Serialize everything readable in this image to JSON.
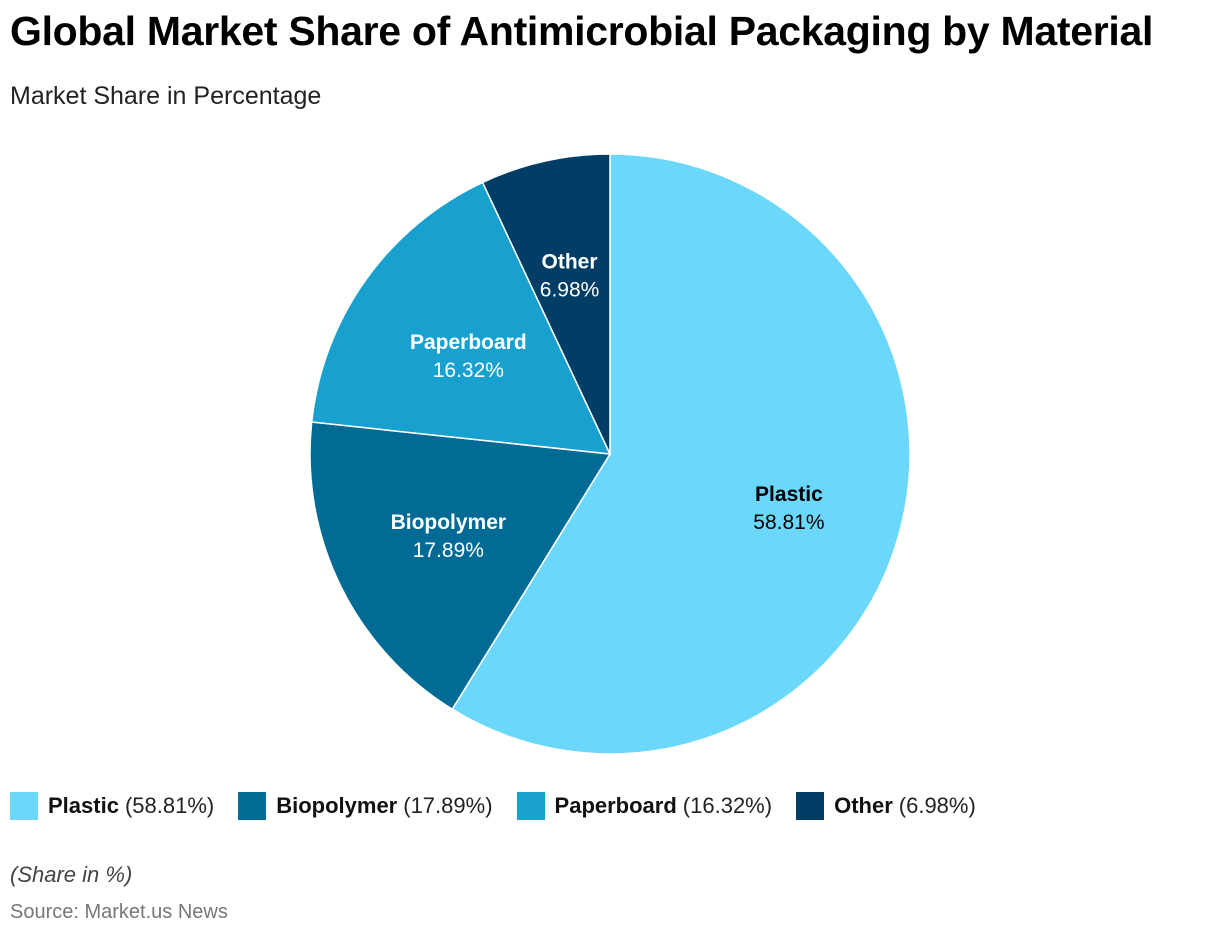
{
  "chart_data": {
    "type": "pie",
    "title": "Global Market Share of Antimicrobial Packaging by Material",
    "subtitle": "Market Share in Percentage",
    "categories": [
      "Plastic",
      "Biopolymer",
      "Paperboard",
      "Other"
    ],
    "values": [
      58.81,
      17.89,
      16.32,
      6.98
    ],
    "value_labels": [
      "58.81%",
      "17.89%",
      "16.32%",
      "6.98%"
    ],
    "colors": [
      "#6ad7fb",
      "#016b96",
      "#18a0cf",
      "#013d64"
    ],
    "label_colors": [
      "#000000",
      "#ffffff",
      "#ffffff",
      "#ffffff"
    ],
    "legend": {
      "position": "bottom-left",
      "items": [
        {
          "name": "Plastic",
          "pct": "(58.81%)",
          "color": "#6ad7fb"
        },
        {
          "name": "Biopolymer",
          "pct": "(17.89%)",
          "color": "#016b96"
        },
        {
          "name": "Paperboard",
          "pct": "(16.32%)",
          "color": "#18a0cf"
        },
        {
          "name": "Other",
          "pct": "(6.98%)",
          "color": "#013d64"
        }
      ]
    },
    "note": "(Share in %)",
    "source": "Source: Market.us News"
  }
}
